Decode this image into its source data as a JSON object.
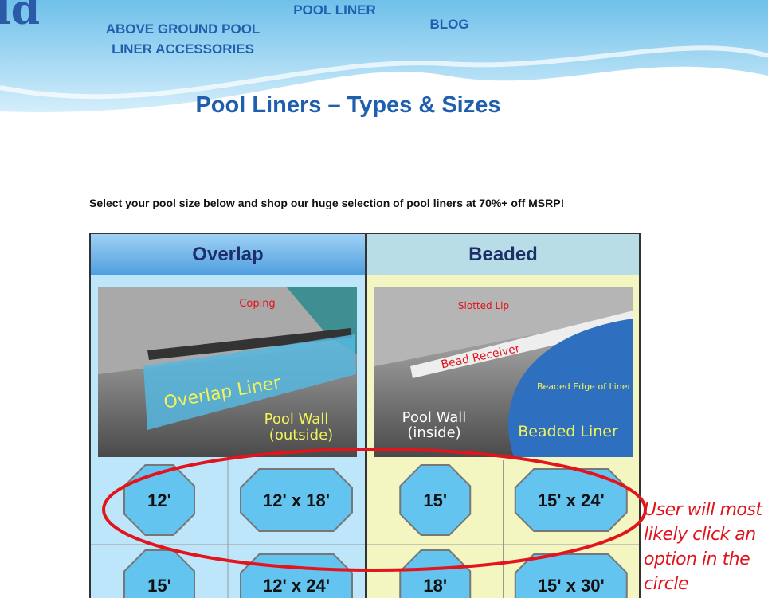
{
  "header": {
    "logo": "ld",
    "nav": [
      "ABOVE GROUND POOL LINER ACCESSORIES",
      "POOL LINER",
      "BLOG"
    ]
  },
  "title": "Pool Liners – Types & Sizes",
  "intro": "Select your pool size below and shop our huge selection of pool liners at 70%+ off MSRP!",
  "columns": [
    {
      "title": "Overlap",
      "image_labels": [
        "Coping",
        "Overlap Liner",
        "Pool Wall",
        "(outside)"
      ],
      "sizes": [
        "12'",
        "12' x 18'",
        "15'",
        "12' x 24'"
      ]
    },
    {
      "title": "Beaded",
      "image_labels": [
        "Slotted Lip",
        "Bead Receiver",
        "Beaded Edge of Liner",
        "Pool Wall",
        "(inside)",
        "Beaded Liner"
      ],
      "sizes": [
        "15'",
        "15' x 24'",
        "18'",
        "15' x 30'"
      ]
    }
  ],
  "annotation": "User will most likely click an option in the circle"
}
